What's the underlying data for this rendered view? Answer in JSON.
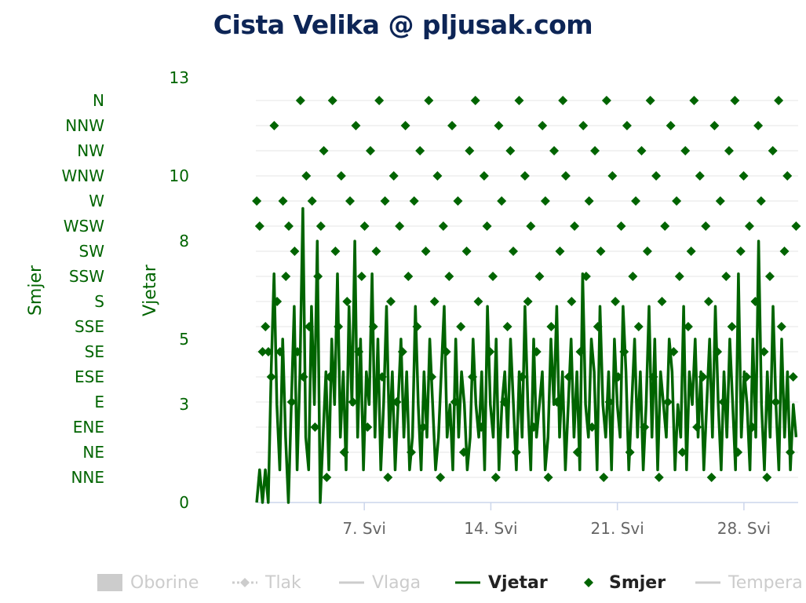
{
  "chart_data": {
    "type": "line",
    "title": "Cista Velika @ pljusak.com",
    "x_axis": {
      "ticks": [
        "7. Svi",
        "14. Svi",
        "21. Svi",
        "28. Svi"
      ],
      "tick_values": [
        "2024-05-07",
        "2024-05-14",
        "2024-05-21",
        "2024-05-28"
      ],
      "range": [
        "2024-05-01",
        "2024-05-31"
      ]
    },
    "y_axis_wind": {
      "label": "Vjetar",
      "ticks": [
        "0",
        "3",
        "5",
        "8",
        "10",
        "13"
      ],
      "range": [
        0,
        13
      ]
    },
    "y_axis_direction": {
      "label": "Smjer",
      "categories": [
        "NNE",
        "NE",
        "ENE",
        "E",
        "ESE",
        "SE",
        "SSE",
        "S",
        "SSW",
        "SW",
        "WSW",
        "W",
        "WNW",
        "NW",
        "NNW",
        "N"
      ]
    },
    "grid": true,
    "series": [
      {
        "name": "Vjetar",
        "axis": "wind",
        "color": "#006400",
        "kind": "line",
        "values": [
          0,
          1,
          0,
          1,
          0,
          4,
          7,
          3,
          1,
          5,
          2,
          0,
          3,
          6,
          1,
          4,
          9,
          2,
          1,
          6,
          3,
          8,
          0,
          2,
          4,
          1,
          5,
          3,
          7,
          2,
          4,
          1,
          6,
          3,
          8,
          2,
          5,
          1,
          4,
          3,
          7,
          2,
          5,
          1,
          3,
          6,
          2,
          4,
          1,
          3,
          5,
          2,
          4,
          1,
          2,
          6,
          3,
          1,
          4,
          2,
          5,
          3,
          1,
          2,
          4,
          6,
          2,
          3,
          1,
          5,
          2,
          4,
          3,
          1,
          2,
          5,
          3,
          2,
          4,
          1,
          6,
          3,
          2,
          5,
          1,
          3,
          4,
          2,
          5,
          3,
          1,
          4,
          2,
          6,
          3,
          1,
          5,
          2,
          3,
          4,
          1,
          2,
          5,
          3,
          6,
          2,
          4,
          1,
          3,
          5,
          2,
          4,
          1,
          7,
          3,
          2,
          5,
          4,
          1,
          6,
          3,
          2,
          4,
          1,
          5,
          3,
          2,
          6,
          4,
          1,
          3,
          5,
          2,
          4,
          1,
          3,
          6,
          2,
          5,
          1,
          4,
          3,
          2,
          5,
          4,
          1,
          3,
          2,
          6,
          1,
          4,
          3,
          5,
          2,
          4,
          1,
          3,
          5,
          2,
          6,
          3,
          1,
          4,
          2,
          5,
          3,
          1,
          7,
          2,
          4,
          3,
          1,
          5,
          2,
          8,
          3,
          1,
          4,
          2,
          6,
          3,
          1,
          5,
          2,
          4,
          1,
          3,
          2
        ]
      },
      {
        "name": "Smjer",
        "axis": "direction",
        "color": "#006400",
        "kind": "scatter",
        "values": [
          11,
          10,
          5,
          6,
          5,
          4,
          14,
          7,
          5,
          11,
          8,
          10,
          3,
          9,
          5,
          15,
          4,
          12,
          6,
          11,
          2,
          8,
          10,
          13,
          0,
          4,
          15,
          9,
          6,
          12,
          1,
          7,
          11,
          3,
          14,
          5,
          8,
          10,
          2,
          13,
          6,
          9,
          15,
          4,
          11,
          0,
          7,
          12,
          3,
          10,
          5,
          14,
          8,
          1,
          11,
          6,
          13,
          2,
          9,
          15,
          4,
          7,
          12,
          0,
          10,
          5,
          8,
          14,
          3,
          11,
          6,
          1,
          9,
          13,
          4,
          15,
          7,
          2,
          12,
          10,
          5,
          8,
          0,
          14,
          11,
          3,
          6,
          13,
          9,
          1,
          15,
          4,
          12,
          7,
          10,
          2,
          5,
          8,
          14,
          11,
          0,
          6,
          13,
          3,
          9,
          15,
          12,
          4,
          7,
          10,
          1,
          5,
          14,
          8,
          11,
          2,
          13,
          6,
          9,
          0,
          15,
          3,
          12,
          7,
          4,
          10,
          5,
          14,
          1,
          8,
          11,
          6,
          13,
          2,
          9,
          15,
          4,
          12,
          0,
          7,
          10,
          3,
          14,
          5,
          11,
          8,
          1,
          13,
          6,
          9,
          15,
          2,
          12,
          4,
          10,
          7,
          0,
          14,
          5,
          11,
          3,
          8,
          13,
          6,
          15,
          1,
          9,
          12,
          4,
          10,
          2,
          7,
          14,
          11,
          5,
          0,
          8,
          13,
          3,
          15,
          6,
          9,
          12,
          1,
          4,
          10
        ]
      }
    ],
    "legend": {
      "placement": "bottom",
      "items": [
        {
          "label": "Oborine",
          "state": "hidden",
          "symbol": "rect"
        },
        {
          "label": "Tlak",
          "state": "hidden",
          "symbol": "dash-diamond"
        },
        {
          "label": "Vlaga",
          "state": "hidden",
          "symbol": "line"
        },
        {
          "label": "Vjetar",
          "state": "visible",
          "symbol": "line"
        },
        {
          "label": "Smjer",
          "state": "visible",
          "symbol": "diamond"
        },
        {
          "label": "Tempera",
          "state": "hidden",
          "symbol": "line"
        }
      ]
    },
    "colors": {
      "title": "#0d2556",
      "series": "#006400",
      "legend_hidden": "#cccccc",
      "legend_visible": "#222222",
      "grid": "#e6e6e6",
      "axis": "#ccd6eb"
    }
  }
}
